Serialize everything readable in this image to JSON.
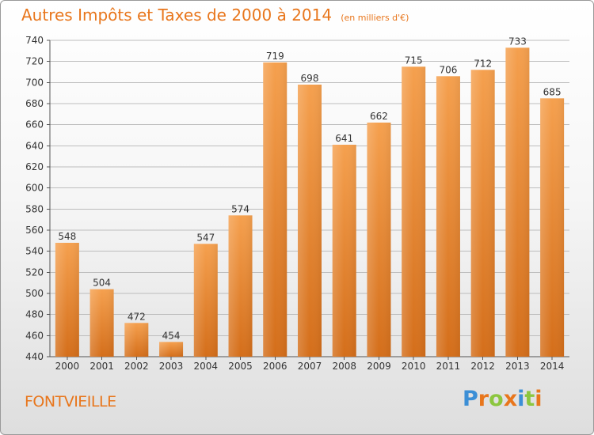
{
  "chart_data": {
    "type": "bar",
    "title": "Autres Impôts et Taxes de 2000 à 2014",
    "subtitle": "(en milliers d'€)",
    "categories": [
      "2000",
      "2001",
      "2002",
      "2003",
      "2004",
      "2005",
      "2006",
      "2007",
      "2008",
      "2009",
      "2010",
      "2011",
      "2012",
      "2013",
      "2014"
    ],
    "values": [
      548,
      504,
      472,
      454,
      547,
      574,
      719,
      698,
      641,
      662,
      715,
      706,
      712,
      733,
      685
    ],
    "ylim": [
      440,
      740
    ],
    "yticks": [
      440,
      460,
      480,
      500,
      520,
      540,
      560,
      580,
      600,
      620,
      640,
      660,
      680,
      700,
      720,
      740
    ],
    "grid": true,
    "bar_color": "#f0933a",
    "bar_color_dark": "#d4701c"
  },
  "footer": {
    "commune": "FONTVIEILLE"
  },
  "logo": {
    "letters": [
      "P",
      "r",
      "o",
      "x",
      "i",
      "t",
      "i"
    ],
    "colors": [
      "#3c8fd6",
      "#e8761c",
      "#8cc63f",
      "#e8761c",
      "#3c8fd6",
      "#8cc63f",
      "#e8761c"
    ]
  }
}
